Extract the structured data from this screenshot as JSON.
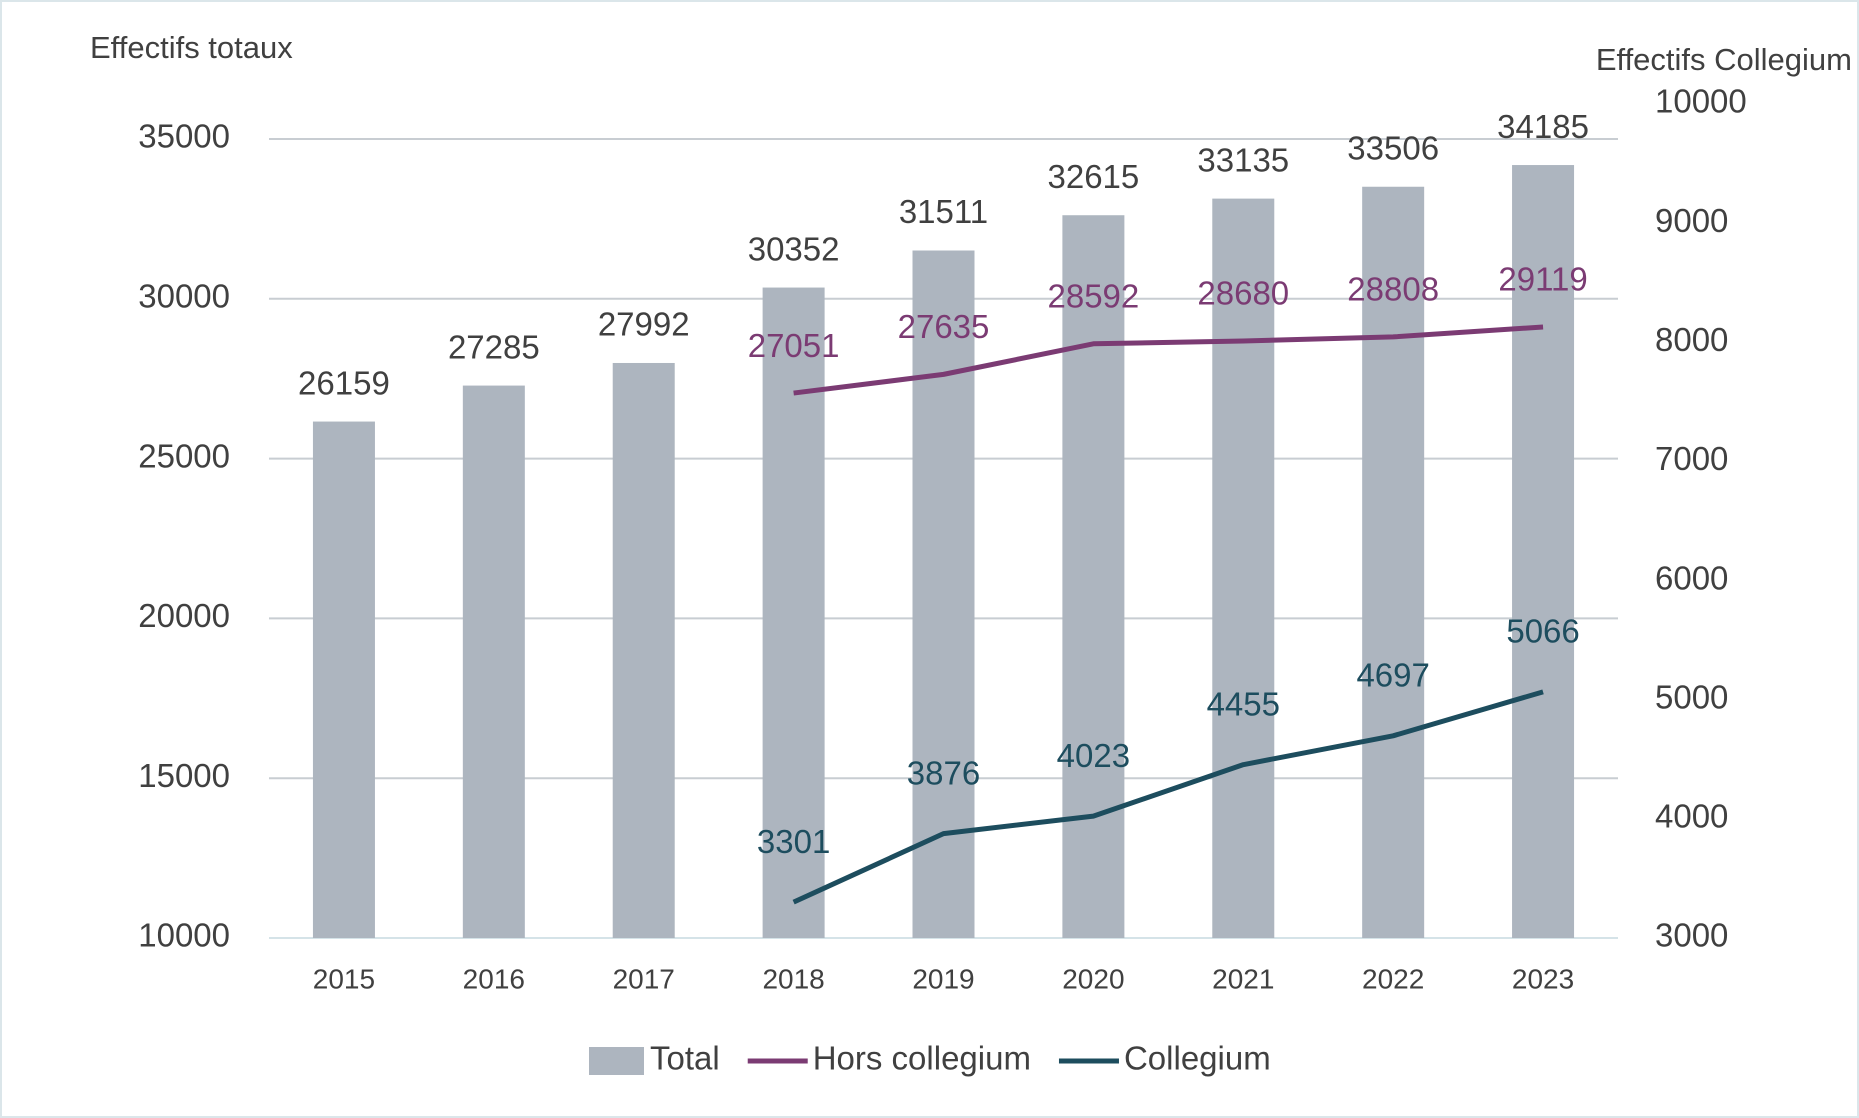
{
  "chart_data": {
    "type": "combo",
    "ylabel": "Effectifs totaux",
    "y2label": "Effectifs Collegium",
    "categories": [
      "2015",
      "2016",
      "2017",
      "2018",
      "2019",
      "2020",
      "2021",
      "2022",
      "2023"
    ],
    "series": [
      {
        "name": "Total",
        "type": "bar",
        "color": "#adb5bf",
        "values": [
          26159,
          27285,
          27992,
          30352,
          31511,
          32615,
          33135,
          33506,
          34185
        ]
      },
      {
        "name": "Hors collegium",
        "type": "line",
        "color": "#7b3b73",
        "values": [
          null,
          null,
          null,
          27051,
          27635,
          28592,
          28680,
          28808,
          29119
        ]
      },
      {
        "name": "Collegium",
        "type": "line",
        "axis": "y2",
        "color": "#1d4d5e",
        "values": [
          null,
          null,
          null,
          3301,
          3876,
          4023,
          4455,
          4697,
          5066
        ]
      }
    ],
    "ylim": [
      10000,
      35000
    ],
    "yticks": [
      10000,
      15000,
      20000,
      25000,
      30000,
      35000
    ],
    "y2lim": [
      3000,
      10000
    ],
    "y2ticks": [
      3000,
      4000,
      5000,
      6000,
      7000,
      8000,
      9000,
      10000
    ],
    "grid": true,
    "legend": "bottom"
  }
}
